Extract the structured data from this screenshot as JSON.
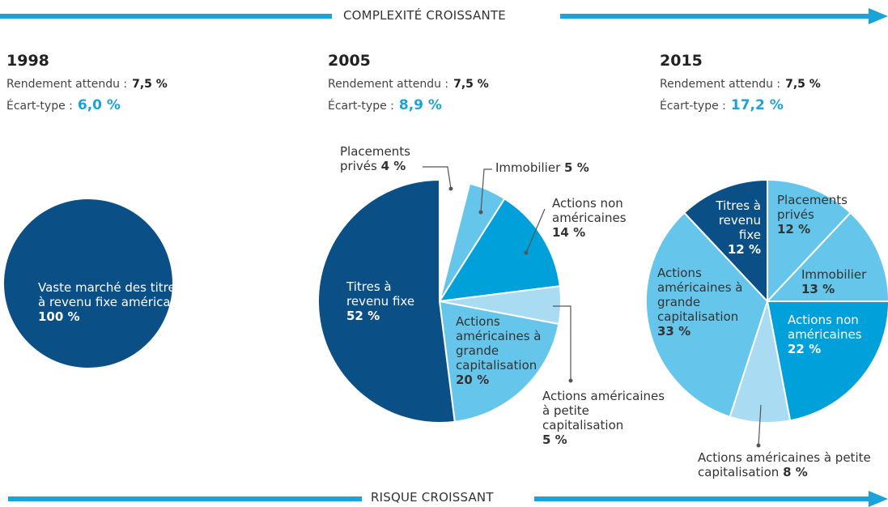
{
  "header": "COMPLEXITÉ CROISSANTE",
  "footer": "RISQUE CROISSANT",
  "chart_data": [
    {
      "type": "pie",
      "title": "1998",
      "return_label": "Rendement attendu :",
      "return_value": "7,5 %",
      "stdev_label": "Écart-type :",
      "stdev_value": "6,0 %",
      "categories": [
        "Vaste marché des titres à revenu fixe américain"
      ],
      "values": [
        100
      ],
      "value_labels": [
        "100 %"
      ],
      "colors": [
        "#0b4f87"
      ]
    },
    {
      "type": "pie",
      "title": "2005",
      "return_label": "Rendement attendu :",
      "return_value": "7,5 %",
      "stdev_label": "Écart-type :",
      "stdev_value": "8,9 %",
      "categories": [
        "Placements privés",
        "Immobilier",
        "Actions non américaines",
        "Actions américaines à petite capitalisation",
        "Actions américaines à grande capitalisation",
        "Titres à revenu fixe"
      ],
      "values": [
        4,
        5,
        14,
        5,
        20,
        52
      ],
      "value_labels": [
        "4 %",
        "5 %",
        "14 %",
        "5 %",
        "20 %",
        "52 %"
      ],
      "colors": [
        "#ffffff",
        "#66c5ea",
        "#00a0da",
        "#a9dcf3",
        "#66c5ea",
        "#0b4f87"
      ]
    },
    {
      "type": "pie",
      "title": "2015",
      "return_label": "Rendement attendu :",
      "return_value": "7,5 %",
      "stdev_label": "Écart-type :",
      "stdev_value": "17,2 %",
      "categories": [
        "Placements privés",
        "Immobilier",
        "Actions non américaines",
        "Actions américaines à petite capitalisation",
        "Actions américaines à grande capitalisation",
        "Titres à revenu fixe"
      ],
      "values": [
        12,
        13,
        22,
        8,
        33,
        12
      ],
      "value_labels": [
        "12 %",
        "13 %",
        "22 %",
        "8 %",
        "33 %",
        "12 %"
      ],
      "colors": [
        "#66c5ea",
        "#66c5ea",
        "#00a0da",
        "#a9dcf3",
        "#66c5ea",
        "#0b4f87"
      ]
    }
  ]
}
